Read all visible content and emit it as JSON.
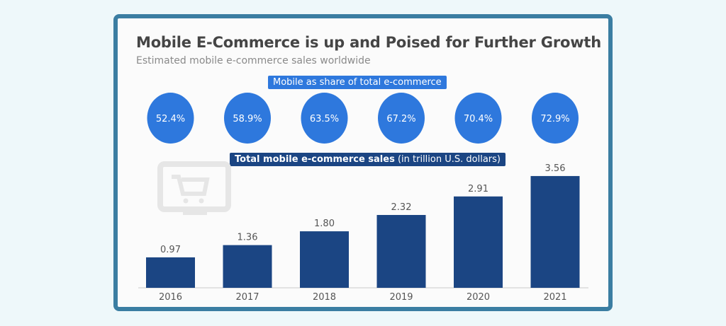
{
  "chart_data": {
    "type": "bar",
    "title": "Mobile E-Commerce is up and Poised for Further Growth",
    "subtitle": "Estimated mobile e-commerce sales worldwide",
    "share_label": "Mobile as share of total e-commerce",
    "sales_label_bold": "Total mobile e-commerce sales",
    "sales_label_unit": " (in trillion U.S. dollars)",
    "categories": [
      "2016",
      "2017",
      "2018",
      "2019",
      "2020",
      "2021"
    ],
    "values": [
      0.97,
      1.36,
      1.8,
      2.32,
      2.91,
      3.56
    ],
    "value_labels": [
      "0.97",
      "1.36",
      "1.80",
      "2.32",
      "2.91",
      "3.56"
    ],
    "share_values": [
      "52.4%",
      "58.9%",
      "63.5%",
      "67.2%",
      "70.4%",
      "72.9%"
    ],
    "grid": false,
    "colors": {
      "bar": "#1b4583",
      "circle": "#2e78dd",
      "share_badge": "#2e78dd",
      "sales_badge": "#1b4583",
      "frame": "#3b7ea2"
    },
    "icon": "shopping-cart-monitor-icon"
  }
}
